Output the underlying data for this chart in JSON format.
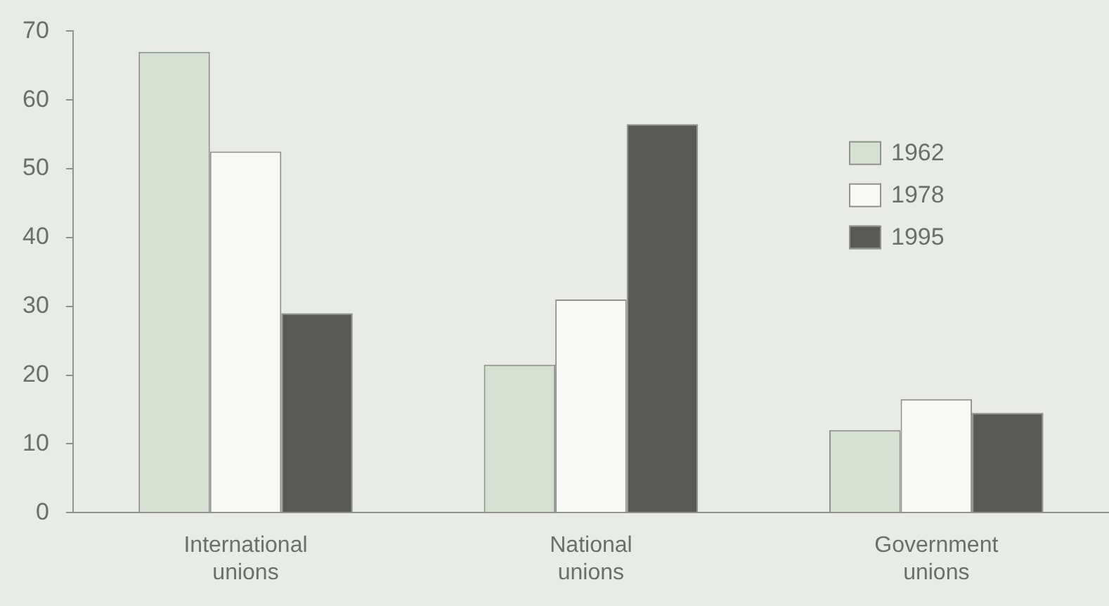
{
  "chart_data": {
    "type": "bar",
    "categories": [
      "International unions",
      "National unions",
      "Government unions"
    ],
    "series": [
      {
        "name": "1962",
        "color": "#d5e0d3",
        "values": [
          67,
          21.5,
          12
        ]
      },
      {
        "name": "1978",
        "color": "#f8f8f6",
        "values": [
          52.5,
          31,
          16.5
        ]
      },
      {
        "name": "1995",
        "color": "#585856",
        "values": [
          29,
          56.5,
          14.5
        ]
      }
    ],
    "ylim": [
      0,
      70
    ],
    "yticks": [
      0,
      10,
      20,
      30,
      40,
      50,
      60,
      70
    ],
    "grid": false,
    "legend": "right"
  }
}
